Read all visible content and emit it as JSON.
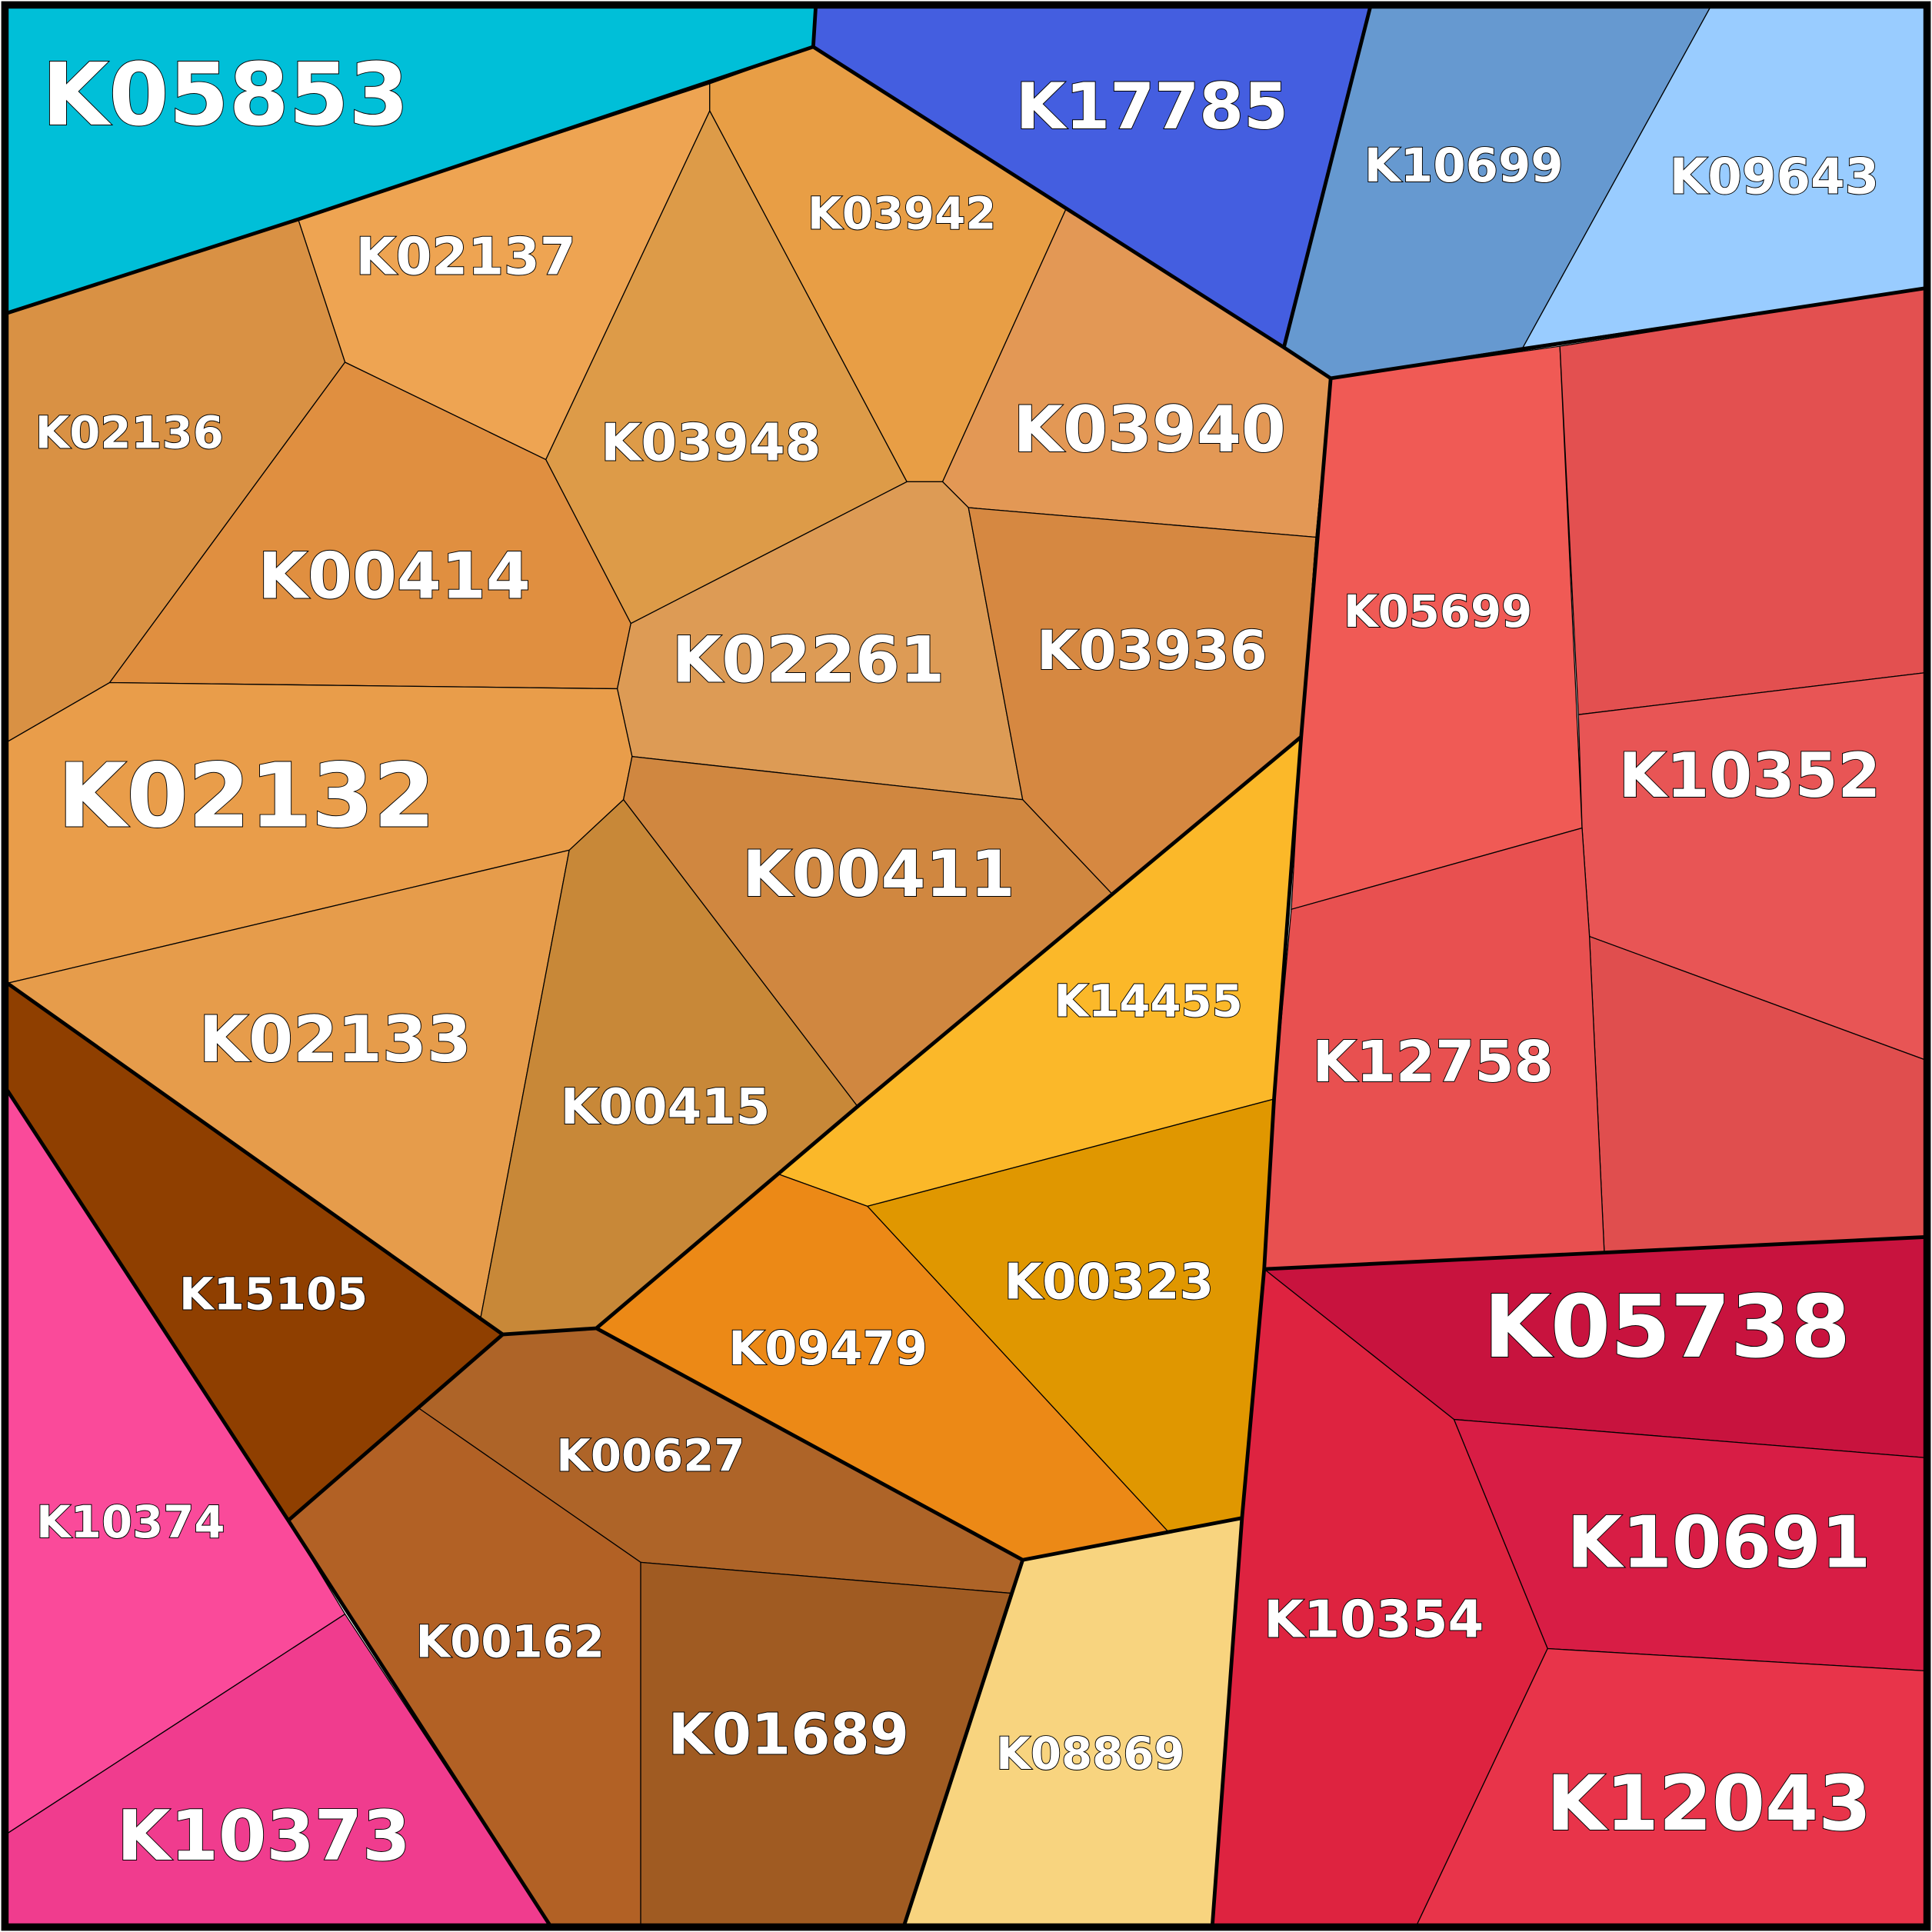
{
  "cells": [
    {
      "label": "K05853"
    },
    {
      "label": "K17785"
    },
    {
      "label": "K10699"
    },
    {
      "label": "K09643"
    },
    {
      "label": "K02137"
    },
    {
      "label": "K03942"
    },
    {
      "label": "K02136"
    },
    {
      "label": "K03948"
    },
    {
      "label": "K03940"
    },
    {
      "label": "K00414"
    },
    {
      "label": "K02261"
    },
    {
      "label": "K03936"
    },
    {
      "label": "K02132"
    },
    {
      "label": "K00411"
    },
    {
      "label": "K02133"
    },
    {
      "label": "K00415"
    },
    {
      "label": "K15105"
    },
    {
      "label": "K10374"
    },
    {
      "label": "K10373"
    },
    {
      "label": "K00627"
    },
    {
      "label": "K00162"
    },
    {
      "label": "K01689"
    },
    {
      "label": "K14455"
    },
    {
      "label": "K00323"
    },
    {
      "label": "K09479"
    },
    {
      "label": "K08869"
    },
    {
      "label": "K05699"
    },
    {
      "label": "K10352"
    },
    {
      "label": "K12758"
    },
    {
      "label": "K05738"
    },
    {
      "label": "K10691"
    },
    {
      "label": "K10354"
    },
    {
      "label": "K12043"
    }
  ]
}
